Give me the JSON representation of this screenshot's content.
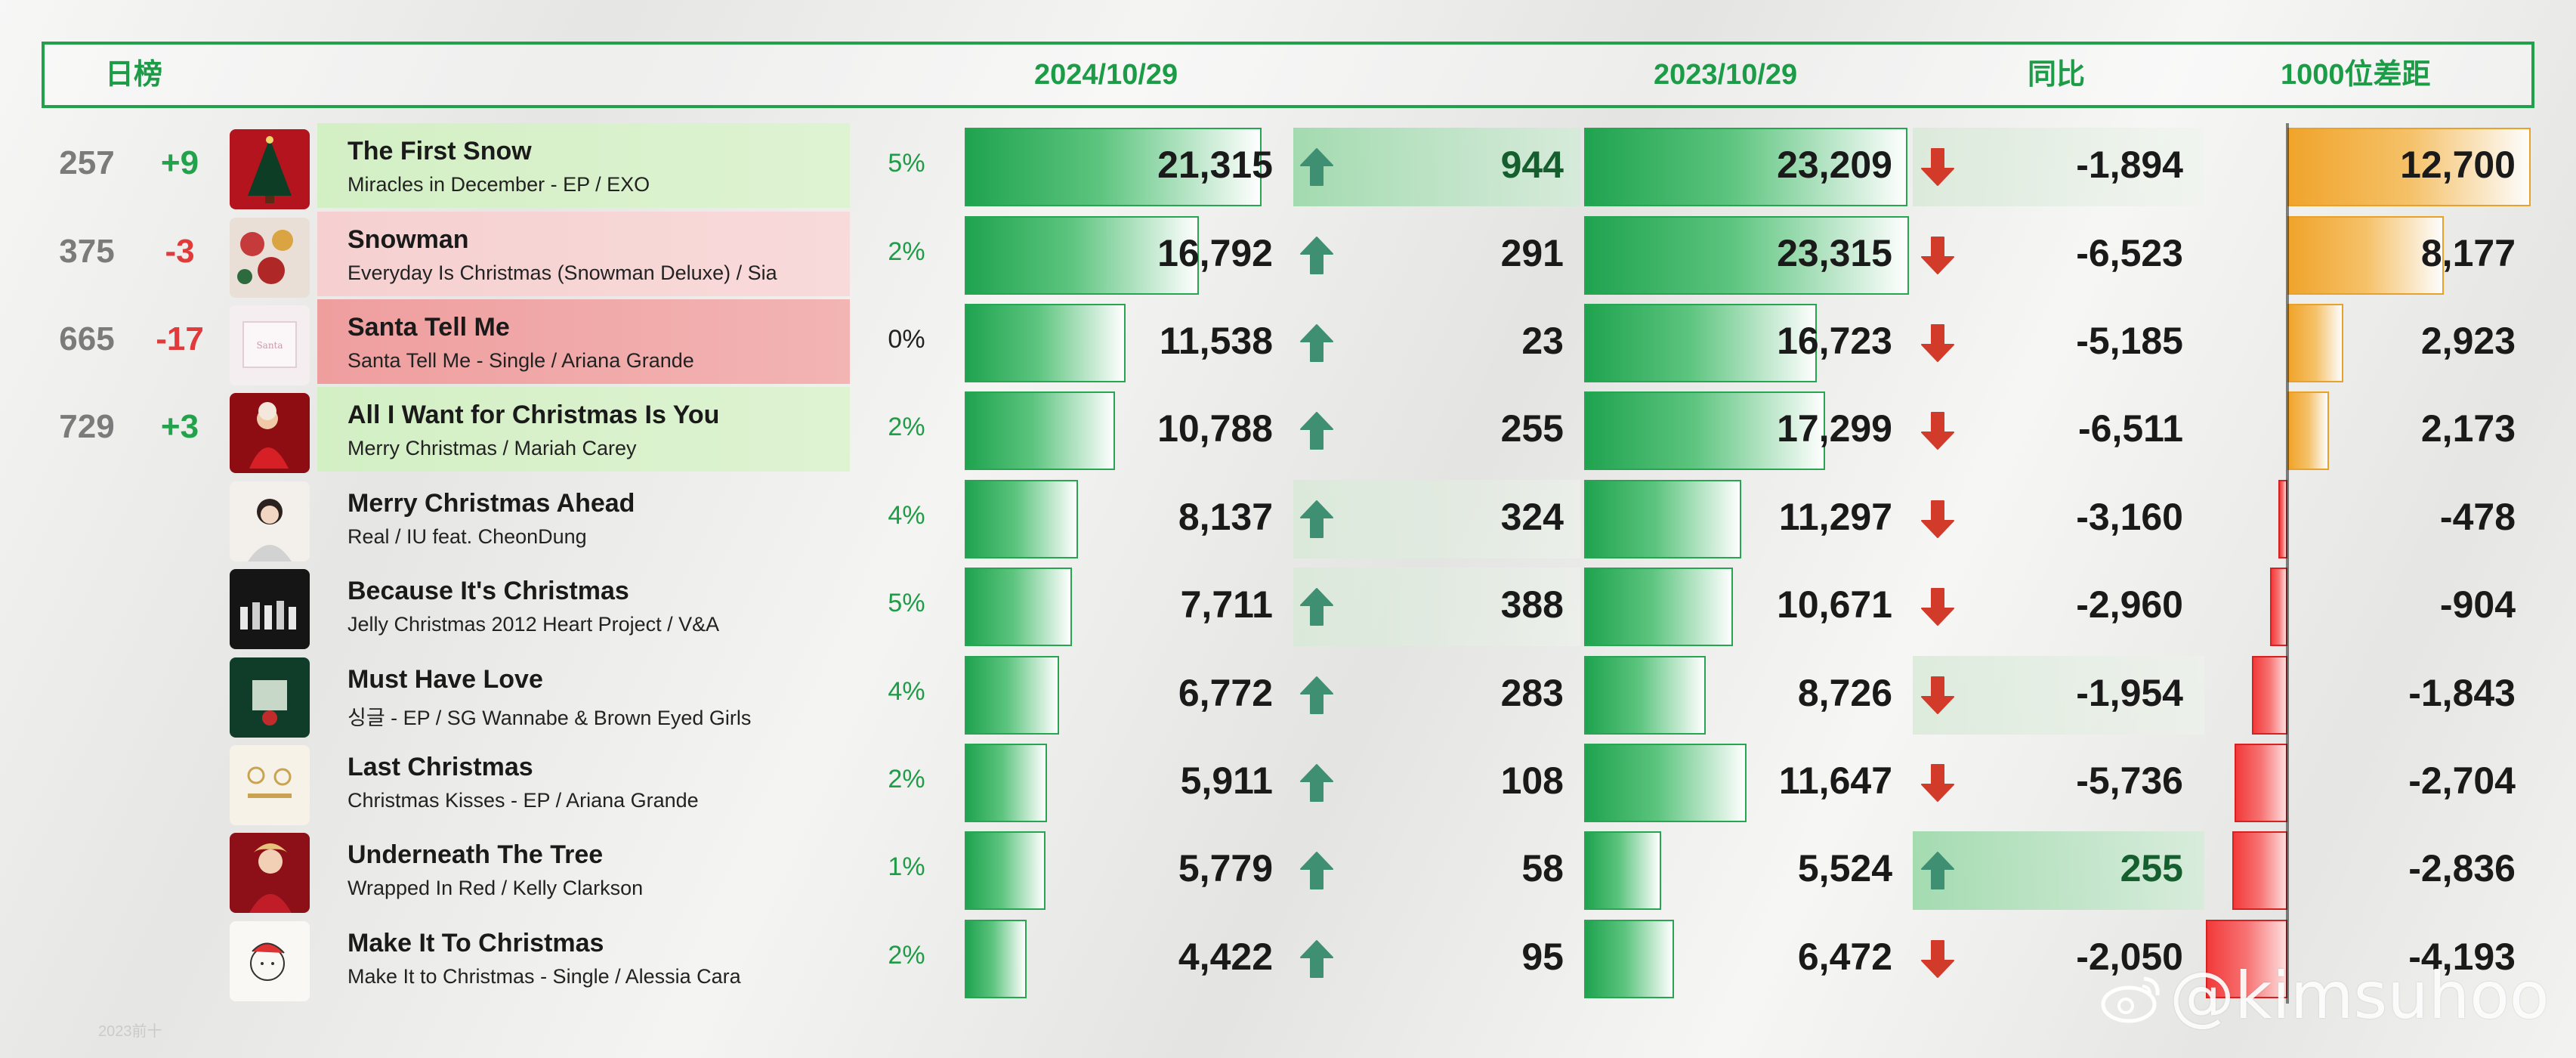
{
  "header": {
    "chart_label": "日榜",
    "date_current": "2024/10/29",
    "date_previous": "2023/10/29",
    "yoy_label": "同比",
    "gap_label": "1000位差距"
  },
  "colors": {
    "accent_green": "#1d9c48",
    "rise_green": "#22a34b",
    "fall_red": "#e13a3a",
    "gold": "#f0a42b",
    "title_bg_green": "#d7f0c8",
    "title_bg_pink": "#f6caca",
    "title_bg_red": "#f0a9a9"
  },
  "rows": [
    {
      "rank": "257",
      "delta": "+9",
      "delta_dir": "up",
      "title": "The First Snow",
      "subtitle": "Miracles in December - EP / EXO",
      "title_bg": "green",
      "pct": "5%",
      "plays_now": "21,315",
      "change_now": "944",
      "change_dir": "up",
      "change_hl": "g",
      "plays_prev": "23,209",
      "yoy": "-1,894",
      "yoy_dir": "down",
      "yoy_hl": "l",
      "gap": "12,700",
      "cover_icon": "christmas-tree-cover-icon"
    },
    {
      "rank": "375",
      "delta": "-3",
      "delta_dir": "down",
      "title": "Snowman",
      "subtitle": "Everyday Is Christmas (Snowman Deluxe) / Sia",
      "title_bg": "pink",
      "pct": "2%",
      "plays_now": "16,792",
      "change_now": "291",
      "change_dir": "up",
      "change_hl": "",
      "plays_prev": "23,315",
      "yoy": "-6,523",
      "yoy_dir": "down",
      "yoy_hl": "",
      "gap": "8,177",
      "cover_icon": "ornament-cover-icon"
    },
    {
      "rank": "665",
      "delta": "-17",
      "delta_dir": "down",
      "title": "Santa Tell Me",
      "subtitle": "Santa Tell Me - Single / Ariana Grande",
      "title_bg": "red",
      "pct": "0%",
      "plays_now": "11,538",
      "change_now": "23",
      "change_dir": "up",
      "change_hl": "",
      "plays_prev": "16,723",
      "yoy": "-5,185",
      "yoy_dir": "down",
      "yoy_hl": "",
      "gap": "2,923",
      "cover_icon": "pastel-card-cover-icon"
    },
    {
      "rank": "729",
      "delta": "+3",
      "delta_dir": "up",
      "title": "All I Want for Christmas Is You",
      "subtitle": "Merry Christmas / Mariah Carey",
      "title_bg": "green",
      "pct": "2%",
      "plays_now": "10,788",
      "change_now": "255",
      "change_dir": "up",
      "change_hl": "",
      "plays_prev": "17,299",
      "yoy": "-6,511",
      "yoy_dir": "down",
      "yoy_hl": "",
      "gap": "2,173",
      "cover_icon": "red-dress-cover-icon"
    },
    {
      "rank": "",
      "delta": "",
      "delta_dir": "",
      "title": "Merry Christmas Ahead",
      "subtitle": "Real / IU feat. CheonDung",
      "title_bg": "",
      "pct": "4%",
      "plays_now": "8,137",
      "change_now": "324",
      "change_dir": "up",
      "change_hl": "l",
      "plays_prev": "11,297",
      "yoy": "-3,160",
      "yoy_dir": "down",
      "yoy_hl": "",
      "gap": "-478",
      "cover_icon": "portrait-cover-icon"
    },
    {
      "rank": "",
      "delta": "",
      "delta_dir": "",
      "title": "Because It's Christmas",
      "subtitle": "Jelly Christmas 2012 Heart Project  / V&A",
      "title_bg": "",
      "pct": "5%",
      "plays_now": "7,711",
      "change_now": "388",
      "change_dir": "up",
      "change_hl": "l",
      "plays_prev": "10,671",
      "yoy": "-2,960",
      "yoy_dir": "down",
      "yoy_hl": "",
      "gap": "-904",
      "cover_icon": "group-dark-cover-icon"
    },
    {
      "rank": "",
      "delta": "",
      "delta_dir": "",
      "title": "Must Have Love",
      "subtitle": "싱글 - EP / SG Wannabe & Brown Eyed Girls",
      "title_bg": "",
      "pct": "4%",
      "plays_now": "6,772",
      "change_now": "283",
      "change_dir": "up",
      "change_hl": "",
      "plays_prev": "8,726",
      "yoy": "-1,954",
      "yoy_dir": "down",
      "yoy_hl": "l",
      "gap": "-1,843",
      "cover_icon": "green-scene-cover-icon"
    },
    {
      "rank": "",
      "delta": "",
      "delta_dir": "",
      "title": "Last Christmas",
      "subtitle": "Christmas Kisses - EP / Ariana Grande",
      "title_bg": "",
      "pct": "2%",
      "plays_now": "5,911",
      "change_now": "108",
      "change_dir": "up",
      "change_hl": "",
      "plays_prev": "11,647",
      "yoy": "-5,736",
      "yoy_dir": "down",
      "yoy_hl": "",
      "gap": "-2,704",
      "cover_icon": "gold-ornaments-cover-icon"
    },
    {
      "rank": "",
      "delta": "",
      "delta_dir": "",
      "title": "Underneath The Tree",
      "subtitle": "Wrapped In Red / Kelly Clarkson",
      "title_bg": "",
      "pct": "1%",
      "plays_now": "5,779",
      "change_now": "58",
      "change_dir": "up",
      "change_hl": "",
      "plays_prev": "5,524",
      "yoy": "255",
      "yoy_dir": "up",
      "yoy_hl": "g",
      "gap": "-2,836",
      "cover_icon": "red-portrait-cover-icon"
    },
    {
      "rank": "",
      "delta": "",
      "delta_dir": "",
      "title": "Make It To Christmas",
      "subtitle": "Make It to Christmas - Single / Alessia Cara",
      "title_bg": "",
      "pct": "2%",
      "plays_now": "4,422",
      "change_now": "95",
      "change_dir": "up",
      "change_hl": "",
      "plays_prev": "6,472",
      "yoy": "-2,050",
      "yoy_dir": "down",
      "yoy_hl": "",
      "gap": "-4,193",
      "cover_icon": "sketch-cover-icon"
    }
  ],
  "watermark": "@kimsuhoo",
  "footnote": "2023前十"
}
